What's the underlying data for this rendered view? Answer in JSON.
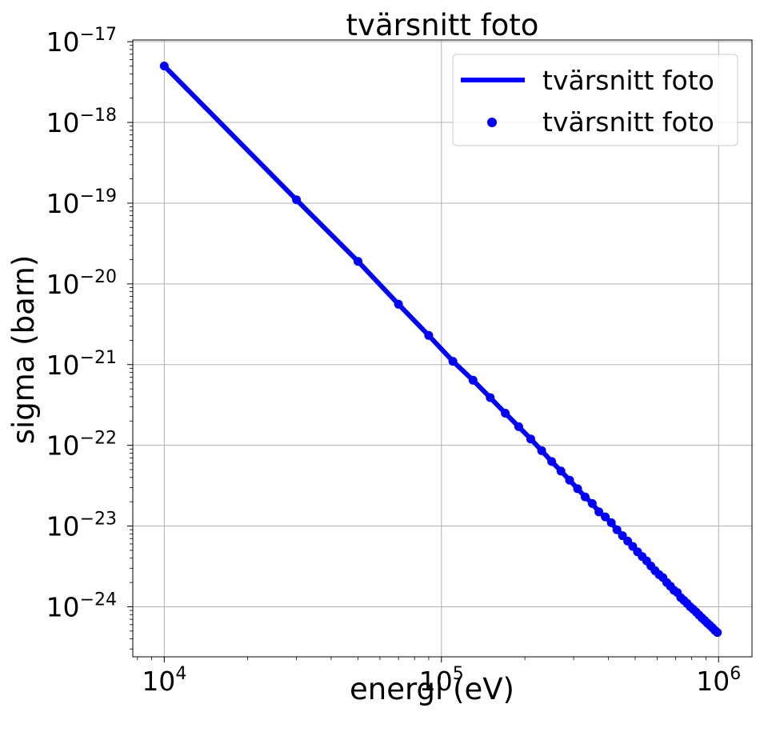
{
  "chart_data": {
    "type": "line",
    "title": "tvärsnitt foto",
    "xlabel": "energi (eV)",
    "ylabel": "sigma (barn)",
    "xscale": "log",
    "yscale": "log",
    "xlim": [
      7700.0,
      1320000.0
    ],
    "ylim": [
      2.4e-25,
      1.05e-17
    ],
    "x_ticks": [
      {
        "value": 10000,
        "base": "10",
        "exp": "4"
      },
      {
        "value": 100000,
        "base": "10",
        "exp": "5"
      },
      {
        "value": 1000000,
        "base": "10",
        "exp": "6"
      }
    ],
    "y_ticks": [
      {
        "value": 1e-17,
        "base": "10",
        "exp": "−17"
      },
      {
        "value": 1e-18,
        "base": "10",
        "exp": "−18"
      },
      {
        "value": 1e-19,
        "base": "10",
        "exp": "−19"
      },
      {
        "value": 1e-20,
        "base": "10",
        "exp": "−20"
      },
      {
        "value": 1e-21,
        "base": "10",
        "exp": "−21"
      },
      {
        "value": 1e-22,
        "base": "10",
        "exp": "−22"
      },
      {
        "value": 1e-23,
        "base": "10",
        "exp": "−23"
      },
      {
        "value": 1e-24,
        "base": "10",
        "exp": "−24"
      }
    ],
    "grid": true,
    "legend_position": "top-right",
    "color": "#0000ff",
    "series": [
      {
        "name": "tvärsnitt foto",
        "style": "line"
      },
      {
        "name": "tvärsnitt foto",
        "style": "scatter"
      }
    ],
    "x": [
      10000,
      30000,
      50000,
      70000,
      90000,
      110000,
      130000,
      150000,
      170000,
      190000,
      210000,
      230000,
      250000,
      270000,
      290000,
      310000,
      330000,
      350000,
      370000,
      390000,
      410000,
      430000,
      450000,
      470000,
      490000,
      510000,
      530000,
      550000,
      570000,
      590000,
      610000,
      630000,
      650000,
      670000,
      690000,
      710000,
      730000,
      750000,
      770000,
      790000,
      810000,
      830000,
      850000,
      870000,
      890000,
      910000,
      930000,
      950000,
      970000,
      990000
    ],
    "y": [
      5e-18,
      1.1e-19,
      1.9e-20,
      5.6e-21,
      2.3e-21,
      1.1e-21,
      6.4e-22,
      3.9e-22,
      2.5e-22,
      1.7e-22,
      1.2e-22,
      8.6e-23,
      6.3e-23,
      4.8e-23,
      3.7e-23,
      2.9e-23,
      2.3e-23,
      1.9e-23,
      1.5e-23,
      1.3e-23,
      1.1e-23,
      9e-24,
      7.6e-24,
      6.5e-24,
      5.6e-24,
      4.8e-24,
      4.2e-24,
      3.7e-24,
      3.2e-24,
      2.8e-24,
      2.5e-24,
      2.3e-24,
      2e-24,
      1.8e-24,
      1.6e-24,
      1.5e-24,
      1.3e-24,
      1.2e-24,
      1.1e-24,
      1e-24,
      9.3e-25,
      8.6e-25,
      7.9e-25,
      7.3e-25,
      6.8e-25,
      6.3e-25,
      5.9e-25,
      5.5e-25,
      5.1e-25,
      4.8e-25
    ]
  }
}
